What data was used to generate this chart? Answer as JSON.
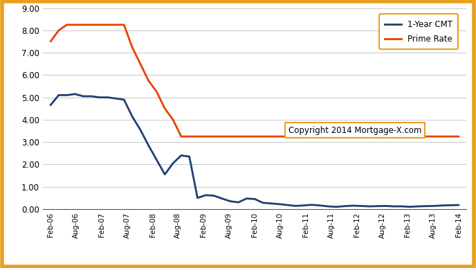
{
  "title": "",
  "background_color": "#ffffff",
  "border_color": "#e8a020",
  "x_tick_labels": [
    "Feb-06",
    "Aug-06",
    "Feb-07",
    "Aug-07",
    "Feb-08",
    "Aug-08",
    "Feb-09",
    "Aug-09",
    "Feb-10",
    "Aug-10",
    "Feb-11",
    "Aug-11",
    "Feb-12",
    "Aug-12",
    "Feb-13",
    "Aug-13",
    "Feb-14"
  ],
  "ylim": [
    0.0,
    9.0
  ],
  "yticks": [
    0.0,
    1.0,
    2.0,
    3.0,
    4.0,
    5.0,
    6.0,
    7.0,
    8.0,
    9.0
  ],
  "cmt_color": "#1f3f6e",
  "prime_color": "#e84000",
  "legend_box_color": "#e8a020",
  "copyright_box_color": "#e8a020",
  "copyright_text": "Copyright 2014 Mortgage-X.com",
  "legend_label_cmt": "1-Year CMT",
  "legend_label_prime": "Prime Rate",
  "grid_color": "#cccccc",
  "cmt_data": [
    4.65,
    5.1,
    5.1,
    5.15,
    5.05,
    5.05,
    5.0,
    5.0,
    4.95,
    4.9,
    4.15,
    3.55,
    2.85,
    2.2,
    1.55,
    2.05,
    2.4,
    2.35,
    0.5,
    0.62,
    0.6,
    0.47,
    0.35,
    0.3,
    0.47,
    0.45,
    0.28,
    0.25,
    0.22,
    0.18,
    0.14,
    0.16,
    0.19,
    0.16,
    0.12,
    0.1,
    0.13,
    0.15,
    0.14,
    0.12,
    0.13,
    0.14,
    0.12,
    0.12,
    0.1,
    0.12,
    0.13,
    0.14,
    0.16,
    0.17,
    0.18
  ],
  "prime_data": [
    7.5,
    8.0,
    8.25,
    8.25,
    8.25,
    8.25,
    8.25,
    8.25,
    8.25,
    8.25,
    7.25,
    6.5,
    5.75,
    5.25,
    4.5,
    4.0,
    3.25,
    3.25,
    3.25,
    3.25,
    3.25,
    3.25,
    3.25,
    3.25,
    3.25,
    3.25,
    3.25,
    3.25,
    3.25,
    3.25,
    3.25,
    3.25,
    3.25,
    3.25,
    3.25,
    3.25,
    3.25,
    3.25,
    3.25,
    3.25,
    3.25,
    3.25,
    3.25,
    3.25,
    3.25,
    3.25,
    3.25,
    3.25,
    3.25,
    3.25,
    3.25
  ]
}
